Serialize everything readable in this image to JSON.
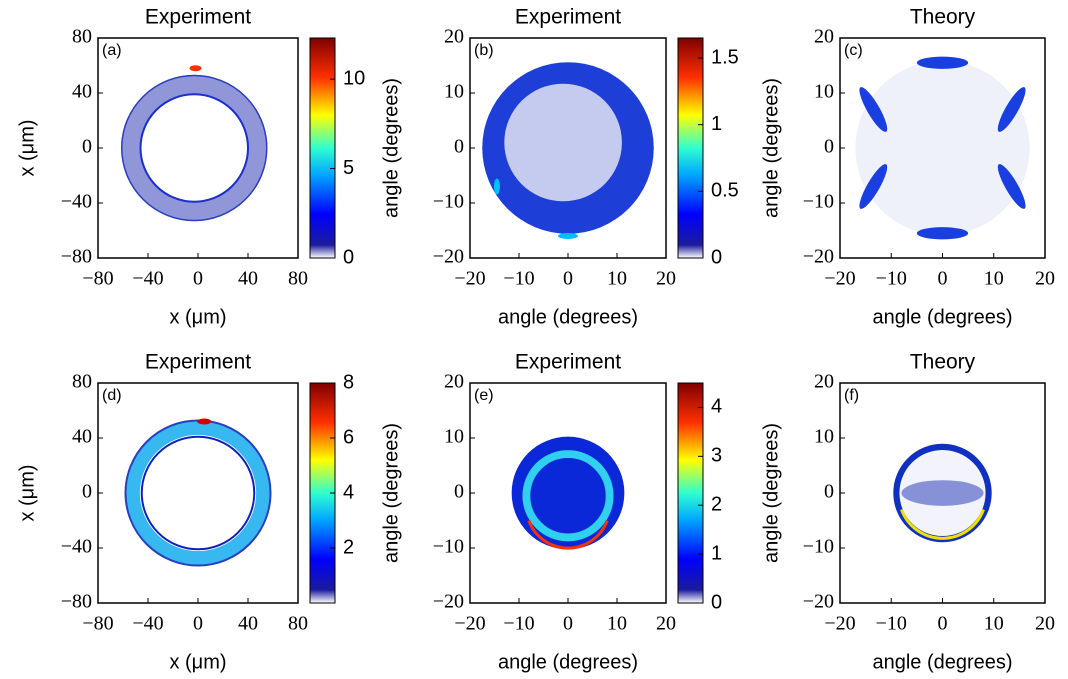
{
  "chart_data": [
    {
      "type": "heatmap",
      "title": "Experiment",
      "panel_label": "(a)",
      "xlabel": "x (μm)",
      "ylabel": "x (μm)",
      "xlim": [
        -80,
        80
      ],
      "ylim": [
        -80,
        80
      ],
      "xticks": [
        {
          "value": -80,
          "label": "−80"
        },
        {
          "value": -40,
          "label": "−40"
        },
        0,
        40,
        80
      ],
      "yticks": [
        {
          "value": -80,
          "label": "−80"
        },
        {
          "value": -40,
          "label": "−40"
        },
        0,
        40,
        80
      ],
      "colormap": "jet",
      "clim": [
        0,
        12.3
      ],
      "cticks": [
        0,
        5,
        10
      ]
    },
    {
      "type": "heatmap",
      "title": "Experiment",
      "panel_label": "(b)",
      "xlabel": "angle (degrees)",
      "ylabel": "angle (degrees)",
      "xlim": [
        -20,
        20
      ],
      "ylim": [
        -20,
        20
      ],
      "xticks": [
        {
          "value": -20,
          "label": "−20"
        },
        {
          "value": -10,
          "label": "−10"
        },
        0,
        10,
        20
      ],
      "yticks": [
        {
          "value": -20,
          "label": "−20"
        },
        {
          "value": -10,
          "label": "−10"
        },
        0,
        10,
        20
      ],
      "colormap": "jet",
      "clim": [
        0,
        1.65
      ],
      "cticks": [
        0,
        0.5,
        1,
        1.5
      ]
    },
    {
      "type": "heatmap",
      "title": "Theory",
      "panel_label": "(c)",
      "xlabel": "angle (degrees)",
      "ylabel": "angle (degrees)",
      "xlim": [
        -20,
        20
      ],
      "ylim": [
        -20,
        20
      ],
      "xticks": [
        {
          "value": -20,
          "label": "−20"
        },
        {
          "value": -10,
          "label": "−10"
        },
        0,
        10,
        20
      ],
      "yticks": [
        {
          "value": -20,
          "label": "−20"
        },
        {
          "value": -10,
          "label": "−10"
        },
        0,
        10,
        20
      ]
    },
    {
      "type": "heatmap",
      "title": "Experiment",
      "panel_label": "(d)",
      "xlabel": "x (μm)",
      "ylabel": "x (μm)",
      "xlim": [
        -80,
        80
      ],
      "ylim": [
        -80,
        80
      ],
      "xticks": [
        {
          "value": -80,
          "label": "−80"
        },
        {
          "value": -40,
          "label": "−40"
        },
        0,
        40,
        80
      ],
      "yticks": [
        {
          "value": -80,
          "label": "−80"
        },
        {
          "value": -40,
          "label": "−40"
        },
        0,
        40,
        80
      ],
      "colormap": "jet",
      "clim": [
        0,
        8
      ],
      "cticks": [
        2,
        4,
        6,
        8
      ]
    },
    {
      "type": "heatmap",
      "title": "Experiment",
      "panel_label": "(e)",
      "xlabel": "angle (degrees)",
      "ylabel": "angle (degrees)",
      "xlim": [
        -20,
        20
      ],
      "ylim": [
        -20,
        20
      ],
      "xticks": [
        {
          "value": -20,
          "label": "−20"
        },
        {
          "value": -10,
          "label": "−10"
        },
        0,
        10,
        20
      ],
      "yticks": [
        {
          "value": -20,
          "label": "−20"
        },
        {
          "value": -10,
          "label": "−10"
        },
        0,
        10,
        20
      ],
      "colormap": "jet",
      "clim": [
        0,
        4.5
      ],
      "cticks": [
        0,
        1,
        2,
        3,
        4
      ]
    },
    {
      "type": "heatmap",
      "title": "Theory",
      "panel_label": "(f)",
      "xlabel": "angle (degrees)",
      "ylabel": "angle (degrees)",
      "xlim": [
        -20,
        20
      ],
      "ylim": [
        -20,
        20
      ],
      "xticks": [
        {
          "value": -20,
          "label": "−20"
        },
        {
          "value": -10,
          "label": "−10"
        },
        0,
        10,
        20
      ],
      "yticks": [
        {
          "value": -20,
          "label": "−20"
        },
        {
          "value": -10,
          "label": "−10"
        },
        0,
        10,
        20
      ]
    }
  ]
}
